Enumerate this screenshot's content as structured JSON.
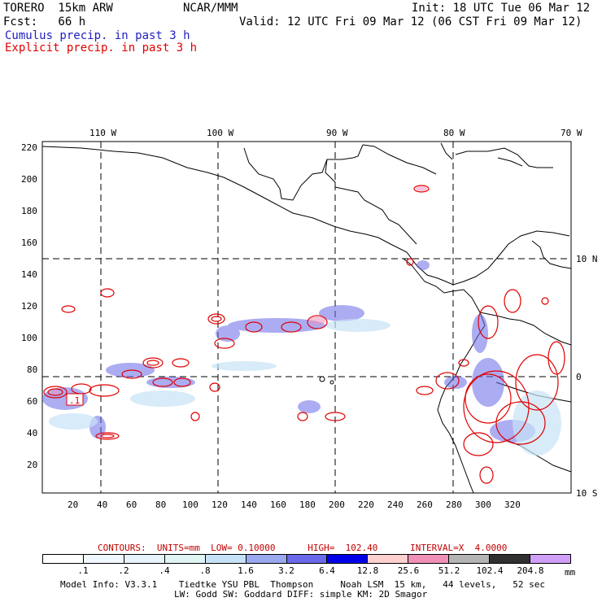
{
  "header": {
    "model_name": "TORERO  15km ARW",
    "org": "NCAR/MMM",
    "init": "Init: 18 UTC Tue 06 Mar 12",
    "fcst": "Fcst:   66 h",
    "valid": "Valid: 12 UTC Fri 09 Mar 12 (06 CST Fri 09 Mar 12)",
    "field1": "Cumulus precip. in past 3 h",
    "field2": "Explicit precip. in past 3 h"
  },
  "colors": {
    "field1": "#2020c0",
    "field2": "#e00000",
    "contour_label": "#c00000"
  },
  "map": {
    "lon_labels": [
      "110 W",
      "100 W",
      "90 W",
      "80 W",
      "70 W"
    ],
    "lat_labels": [
      "10 N",
      "0",
      "10 S"
    ],
    "x_ticks": [
      "20",
      "40",
      "60",
      "80",
      "100",
      "120",
      "140",
      "160",
      "180",
      "200",
      "220",
      "240",
      "260",
      "280",
      "300",
      "320"
    ],
    "y_ticks": [
      "220",
      "200",
      "180",
      "160",
      "140",
      "120",
      "100",
      "80",
      "60",
      "40",
      "20"
    ],
    "annotation": ".1"
  },
  "contour_info": "CONTOURS:  UNITS=mm  LOW= 0.10000      HIGH=  102.40      INTERVAL=X  4.0000",
  "legend": {
    "colors": [
      "#ffffff",
      "#f0f8ff",
      "#e6f3fb",
      "#e0f4f4",
      "#c6e2f7",
      "#9aa8ee",
      "#6a6ae8",
      "#0000e8",
      "#ffd0d0",
      "#f090b8",
      "#b4b4b4",
      "#303030",
      "#d0a0f8"
    ],
    "labels": [
      ".1",
      ".2",
      ".4",
      ".8",
      "1.6",
      "3.2",
      "6.4",
      "12.8",
      "25.6",
      "51.2",
      "102.4",
      "204.8"
    ],
    "unit": "mm"
  },
  "footer": {
    "line1": "Model Info: V3.3.1    Tiedtke YSU PBL  Thompson     Noah LSM  15 km,   44 levels,   52 sec",
    "line2": "LW: Godd SW: Goddard DIFF: simple KM: 2D Smagor"
  }
}
